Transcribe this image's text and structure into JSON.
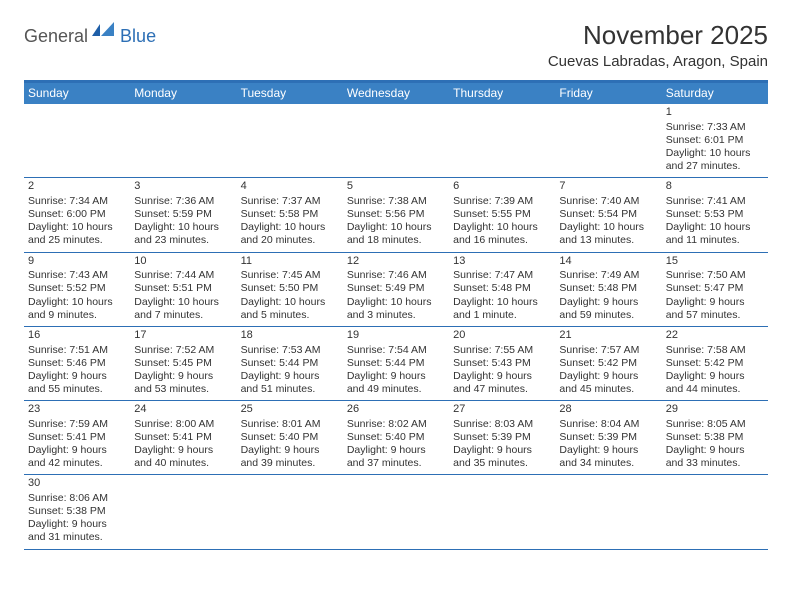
{
  "logo": {
    "general": "General",
    "blue": "Blue"
  },
  "title": "November 2025",
  "location": "Cuevas Labradas, Aragon, Spain",
  "colors": {
    "header_bar": "#3a81c4",
    "border": "#2d6fb5",
    "text": "#333333",
    "bg": "#ffffff"
  },
  "weekdays": [
    "Sunday",
    "Monday",
    "Tuesday",
    "Wednesday",
    "Thursday",
    "Friday",
    "Saturday"
  ],
  "weeks": [
    [
      null,
      null,
      null,
      null,
      null,
      null,
      {
        "n": "1",
        "sr": "Sunrise: 7:33 AM",
        "ss": "Sunset: 6:01 PM",
        "dl": "Daylight: 10 hours and 27 minutes."
      }
    ],
    [
      {
        "n": "2",
        "sr": "Sunrise: 7:34 AM",
        "ss": "Sunset: 6:00 PM",
        "dl": "Daylight: 10 hours and 25 minutes."
      },
      {
        "n": "3",
        "sr": "Sunrise: 7:36 AM",
        "ss": "Sunset: 5:59 PM",
        "dl": "Daylight: 10 hours and 23 minutes."
      },
      {
        "n": "4",
        "sr": "Sunrise: 7:37 AM",
        "ss": "Sunset: 5:58 PM",
        "dl": "Daylight: 10 hours and 20 minutes."
      },
      {
        "n": "5",
        "sr": "Sunrise: 7:38 AM",
        "ss": "Sunset: 5:56 PM",
        "dl": "Daylight: 10 hours and 18 minutes."
      },
      {
        "n": "6",
        "sr": "Sunrise: 7:39 AM",
        "ss": "Sunset: 5:55 PM",
        "dl": "Daylight: 10 hours and 16 minutes."
      },
      {
        "n": "7",
        "sr": "Sunrise: 7:40 AM",
        "ss": "Sunset: 5:54 PM",
        "dl": "Daylight: 10 hours and 13 minutes."
      },
      {
        "n": "8",
        "sr": "Sunrise: 7:41 AM",
        "ss": "Sunset: 5:53 PM",
        "dl": "Daylight: 10 hours and 11 minutes."
      }
    ],
    [
      {
        "n": "9",
        "sr": "Sunrise: 7:43 AM",
        "ss": "Sunset: 5:52 PM",
        "dl": "Daylight: 10 hours and 9 minutes."
      },
      {
        "n": "10",
        "sr": "Sunrise: 7:44 AM",
        "ss": "Sunset: 5:51 PM",
        "dl": "Daylight: 10 hours and 7 minutes."
      },
      {
        "n": "11",
        "sr": "Sunrise: 7:45 AM",
        "ss": "Sunset: 5:50 PM",
        "dl": "Daylight: 10 hours and 5 minutes."
      },
      {
        "n": "12",
        "sr": "Sunrise: 7:46 AM",
        "ss": "Sunset: 5:49 PM",
        "dl": "Daylight: 10 hours and 3 minutes."
      },
      {
        "n": "13",
        "sr": "Sunrise: 7:47 AM",
        "ss": "Sunset: 5:48 PM",
        "dl": "Daylight: 10 hours and 1 minute."
      },
      {
        "n": "14",
        "sr": "Sunrise: 7:49 AM",
        "ss": "Sunset: 5:48 PM",
        "dl": "Daylight: 9 hours and 59 minutes."
      },
      {
        "n": "15",
        "sr": "Sunrise: 7:50 AM",
        "ss": "Sunset: 5:47 PM",
        "dl": "Daylight: 9 hours and 57 minutes."
      }
    ],
    [
      {
        "n": "16",
        "sr": "Sunrise: 7:51 AM",
        "ss": "Sunset: 5:46 PM",
        "dl": "Daylight: 9 hours and 55 minutes."
      },
      {
        "n": "17",
        "sr": "Sunrise: 7:52 AM",
        "ss": "Sunset: 5:45 PM",
        "dl": "Daylight: 9 hours and 53 minutes."
      },
      {
        "n": "18",
        "sr": "Sunrise: 7:53 AM",
        "ss": "Sunset: 5:44 PM",
        "dl": "Daylight: 9 hours and 51 minutes."
      },
      {
        "n": "19",
        "sr": "Sunrise: 7:54 AM",
        "ss": "Sunset: 5:44 PM",
        "dl": "Daylight: 9 hours and 49 minutes."
      },
      {
        "n": "20",
        "sr": "Sunrise: 7:55 AM",
        "ss": "Sunset: 5:43 PM",
        "dl": "Daylight: 9 hours and 47 minutes."
      },
      {
        "n": "21",
        "sr": "Sunrise: 7:57 AM",
        "ss": "Sunset: 5:42 PM",
        "dl": "Daylight: 9 hours and 45 minutes."
      },
      {
        "n": "22",
        "sr": "Sunrise: 7:58 AM",
        "ss": "Sunset: 5:42 PM",
        "dl": "Daylight: 9 hours and 44 minutes."
      }
    ],
    [
      {
        "n": "23",
        "sr": "Sunrise: 7:59 AM",
        "ss": "Sunset: 5:41 PM",
        "dl": "Daylight: 9 hours and 42 minutes."
      },
      {
        "n": "24",
        "sr": "Sunrise: 8:00 AM",
        "ss": "Sunset: 5:41 PM",
        "dl": "Daylight: 9 hours and 40 minutes."
      },
      {
        "n": "25",
        "sr": "Sunrise: 8:01 AM",
        "ss": "Sunset: 5:40 PM",
        "dl": "Daylight: 9 hours and 39 minutes."
      },
      {
        "n": "26",
        "sr": "Sunrise: 8:02 AM",
        "ss": "Sunset: 5:40 PM",
        "dl": "Daylight: 9 hours and 37 minutes."
      },
      {
        "n": "27",
        "sr": "Sunrise: 8:03 AM",
        "ss": "Sunset: 5:39 PM",
        "dl": "Daylight: 9 hours and 35 minutes."
      },
      {
        "n": "28",
        "sr": "Sunrise: 8:04 AM",
        "ss": "Sunset: 5:39 PM",
        "dl": "Daylight: 9 hours and 34 minutes."
      },
      {
        "n": "29",
        "sr": "Sunrise: 8:05 AM",
        "ss": "Sunset: 5:38 PM",
        "dl": "Daylight: 9 hours and 33 minutes."
      }
    ],
    [
      {
        "n": "30",
        "sr": "Sunrise: 8:06 AM",
        "ss": "Sunset: 5:38 PM",
        "dl": "Daylight: 9 hours and 31 minutes."
      },
      null,
      null,
      null,
      null,
      null,
      null
    ]
  ]
}
